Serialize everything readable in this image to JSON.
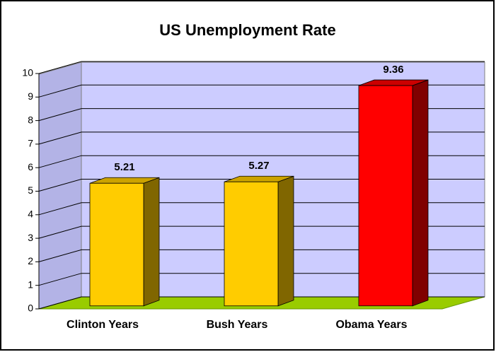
{
  "chart_data": {
    "type": "bar",
    "title": "US Unemployment Rate",
    "categories": [
      "Clinton Years",
      "Bush Years",
      "Obama Years"
    ],
    "values": [
      5.21,
      5.27,
      9.36
    ],
    "colors": [
      "#ffcc00",
      "#ffcc00",
      "#ff0000"
    ],
    "ylim": [
      0,
      10
    ],
    "yticks": [
      0,
      1,
      2,
      3,
      4,
      5,
      6,
      7,
      8,
      9,
      10
    ],
    "grid": true
  }
}
